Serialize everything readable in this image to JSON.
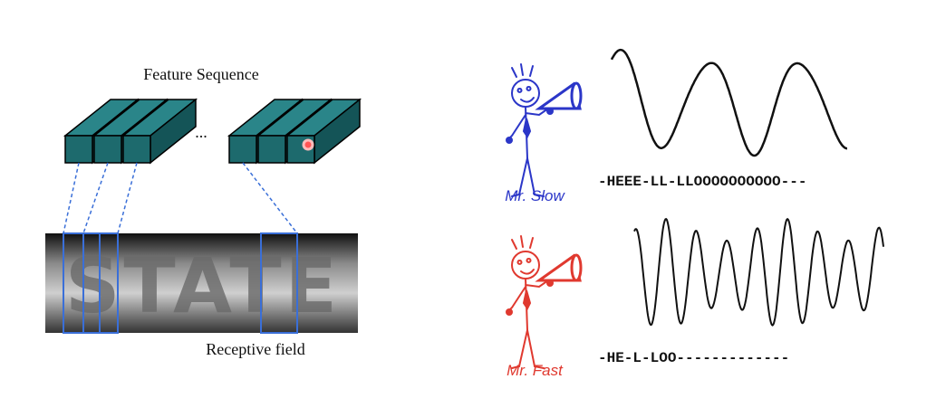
{
  "feature_title": "Feature Sequence",
  "ellipsis": "...",
  "image_text": "STATE",
  "receptive_label": "Receptive field",
  "slow": {
    "name": "Mr. Slow",
    "sequence": "-HEEE-LL-LLOOOOOOOOOO---"
  },
  "fast": {
    "name": "Mr. Fast",
    "sequence": "-HE-L-LOO-------------"
  }
}
